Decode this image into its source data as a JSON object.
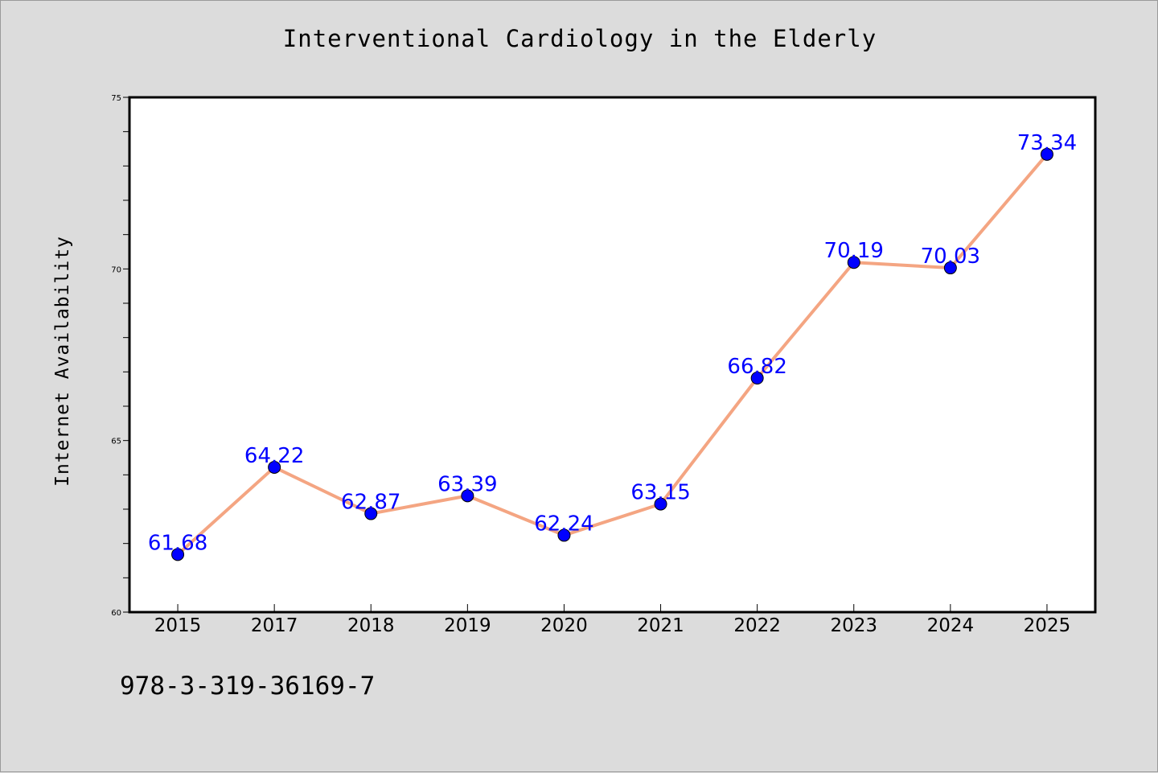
{
  "chart_data": {
    "type": "line",
    "title": "Interventional Cardiology in the Elderly",
    "xlabel": "",
    "ylabel": "Internet Availability",
    "categories": [
      "2015",
      "2017",
      "2018",
      "2019",
      "2020",
      "2021",
      "2022",
      "2023",
      "2024",
      "2025"
    ],
    "series": [
      {
        "values": [
          61.68,
          64.22,
          62.87,
          63.39,
          62.24,
          63.15,
          66.82,
          70.19,
          70.03,
          73.34
        ],
        "labels": [
          "61.68",
          "64.22",
          "62.87",
          "63.39",
          "62.24",
          "63.15",
          "66.82",
          "70.19",
          "70.03",
          "73.34"
        ],
        "line_color": "#f4a582",
        "marker_color": "#0000ff"
      }
    ],
    "ylim": [
      60,
      75
    ],
    "yticks": [
      "60",
      "65",
      "70",
      "75"
    ],
    "grid": false,
    "legend": "none"
  },
  "footer": {
    "isbn": "978-3-319-36169-7"
  },
  "colors": {
    "background": "#dcdcdc",
    "plot_background": "#ffffff",
    "label_color": "#0000ff"
  }
}
